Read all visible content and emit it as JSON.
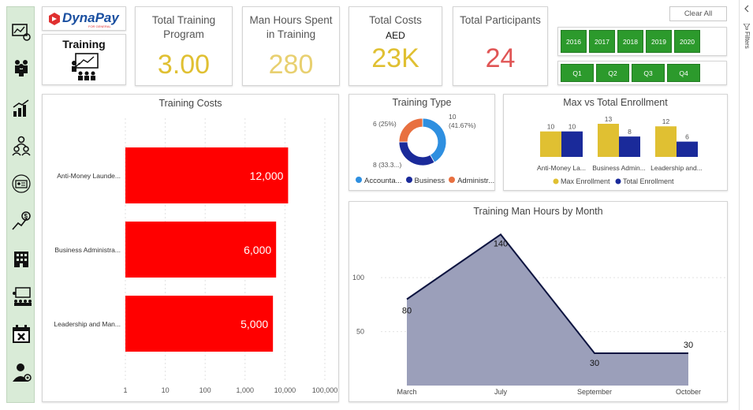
{
  "brand": {
    "logo_text": "DynaPay",
    "logo_sub": "FOR GENERAL",
    "page_label": "Training"
  },
  "nav": {
    "items": [
      {
        "icon": "dashboard-icon"
      },
      {
        "icon": "people-group-icon"
      },
      {
        "icon": "growth-chart-icon"
      },
      {
        "icon": "team-icon"
      },
      {
        "icon": "id-card-icon"
      },
      {
        "icon": "money-growth-icon"
      },
      {
        "icon": "building-icon"
      },
      {
        "icon": "training-board-icon"
      },
      {
        "icon": "calendar-cancel-icon"
      },
      {
        "icon": "employee-settings-icon"
      }
    ]
  },
  "kpis": {
    "total_training": {
      "title": "Total Training Program",
      "value": "3.00"
    },
    "man_hours": {
      "title": "Man Hours Spent in Training",
      "value": "280"
    },
    "total_costs": {
      "title": "Total Costs",
      "currency": "AED",
      "value": "23K"
    },
    "participants": {
      "title": "Total Participants",
      "value": "24"
    }
  },
  "filters": {
    "clear_all": "Clear All",
    "years": [
      "2016",
      "2017",
      "2018",
      "2019",
      "2020"
    ],
    "quarters": [
      "Q1",
      "Q2",
      "Q3",
      "Q4"
    ],
    "pane_label": "Filters"
  },
  "colors": {
    "green": "#2c9a2c",
    "gold": "#e0c032",
    "red": "#e05555",
    "bar_red": "#ff0000",
    "navy": "#1a2a9a",
    "area": "#9b9fba"
  },
  "training_costs": {
    "title": "Training Costs",
    "chart_data": {
      "type": "bar",
      "orientation": "horizontal",
      "scale": "log",
      "categories": [
        "Anti-Money Launde...",
        "Business Administra...",
        "Leadership and Man..."
      ],
      "values": [
        12000,
        6000,
        5000
      ],
      "value_labels": [
        "12,000",
        "6,000",
        "5,000"
      ],
      "xticks": [
        1,
        10,
        100,
        1000,
        10000,
        100000
      ],
      "xtick_labels": [
        "1",
        "10",
        "100",
        "1,000",
        "10,000",
        "100,000"
      ]
    }
  },
  "training_type": {
    "title": "Training Type",
    "chart_data": {
      "type": "pie",
      "donut": true,
      "categories": [
        "Accounta...",
        "Business",
        "Administr..."
      ],
      "values": [
        10,
        8,
        6
      ],
      "slice_labels": [
        "10\n(41.67%)",
        "8 (33.3...)",
        "6 (25%)"
      ],
      "colors": [
        "#2e8fe0",
        "#1a2a9a",
        "#e87040"
      ]
    }
  },
  "enrollment": {
    "title": "Max vs Total Enrollment",
    "chart_data": {
      "type": "bar",
      "categories": [
        "Anti-Money La...",
        "Business Admin...",
        "Leadership and..."
      ],
      "series": [
        {
          "name": "Max Enrollment",
          "values": [
            10,
            13,
            12
          ],
          "color": "#e0c032"
        },
        {
          "name": "Total Enrollment",
          "values": [
            10,
            8,
            6
          ],
          "color": "#1a2a9a"
        }
      ],
      "ylim": [
        0,
        13
      ]
    }
  },
  "man_hours_month": {
    "title": "Training Man Hours by Month",
    "chart_data": {
      "type": "area",
      "x": [
        "March",
        "July",
        "September",
        "October"
      ],
      "values": [
        80,
        140,
        30,
        30
      ],
      "value_labels": [
        "80",
        "140",
        "30",
        "30"
      ],
      "yticks": [
        50,
        100
      ],
      "ytick_labels": [
        "50",
        "100"
      ],
      "ylim": [
        0,
        160
      ]
    }
  }
}
